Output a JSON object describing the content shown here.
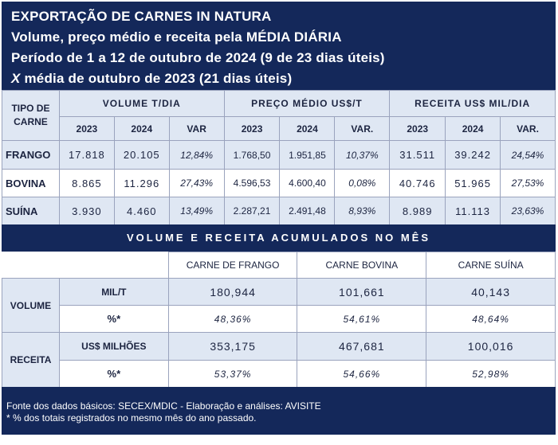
{
  "header": {
    "line1": "EXPORTAÇÃO DE CARNES IN NATURA",
    "line2": "Volume, preço médio e receita pela MÉDIA DIÁRIA",
    "line3": "Período de 1 a 12 de outubro de 2024 (9 de 23 dias úteis)",
    "line4_x": "X",
    "line4": "média de outubro de 2023 (21 dias úteis)"
  },
  "top_table": {
    "type_header": "TIPO DE CARNE",
    "groups": [
      "VOLUME T/DIA",
      "PREÇO MÉDIO US$/T",
      "RECEITA US$ MIL/DIA"
    ],
    "subheaders": [
      "2023",
      "2024",
      "VAR",
      "2023",
      "2024",
      "VAR.",
      "2023",
      "2024",
      "VAR."
    ],
    "rows": [
      {
        "name": "FRANGO",
        "values": [
          "17.818",
          "20.105",
          "12,84%",
          "1.768,50",
          "1.951,85",
          "10,37%",
          "31.511",
          "39.242",
          "24,54%"
        ]
      },
      {
        "name": "BOVINA",
        "values": [
          "8.865",
          "11.296",
          "27,43%",
          "4.596,53",
          "4.600,40",
          "0,08%",
          "40.746",
          "51.965",
          "27,53%"
        ]
      },
      {
        "name": "SUÍNA",
        "values": [
          "3.930",
          "4.460",
          "13,49%",
          "2.287,21",
          "2.491,48",
          "8,93%",
          "8.989",
          "11.113",
          "23,63%"
        ]
      }
    ]
  },
  "band_title": "VOLUME E RECEITA ACUMULADOS NO MÊS",
  "bottom_table": {
    "columns": [
      "CARNE DE FRANGO",
      "CARNE BOVINA",
      "CARNE SUÍNA"
    ],
    "volume_label": "VOLUME",
    "volume_unit": "MIL/T",
    "volume_values": [
      "180,944",
      "101,661",
      "40,143"
    ],
    "pct_label": "%*",
    "volume_pct": [
      "48,36%",
      "54,61%",
      "48,64%"
    ],
    "receita_label": "RECEITA",
    "receita_unit": "US$ MILHÕES",
    "receita_values": [
      "353,175",
      "467,681",
      "100,016"
    ],
    "receita_pct": [
      "53,37%",
      "54,66%",
      "52,98%"
    ]
  },
  "footer": {
    "line1": "Fonte dos dados básicos: SECEX/MDIC - Elaboração e análises: AVISITE",
    "line2": "*  % dos totais registrados no mesmo mês do ano passado."
  },
  "colors": {
    "navy": "#14285a",
    "light_row": "#dfe7f3",
    "text": "#1c2440"
  }
}
